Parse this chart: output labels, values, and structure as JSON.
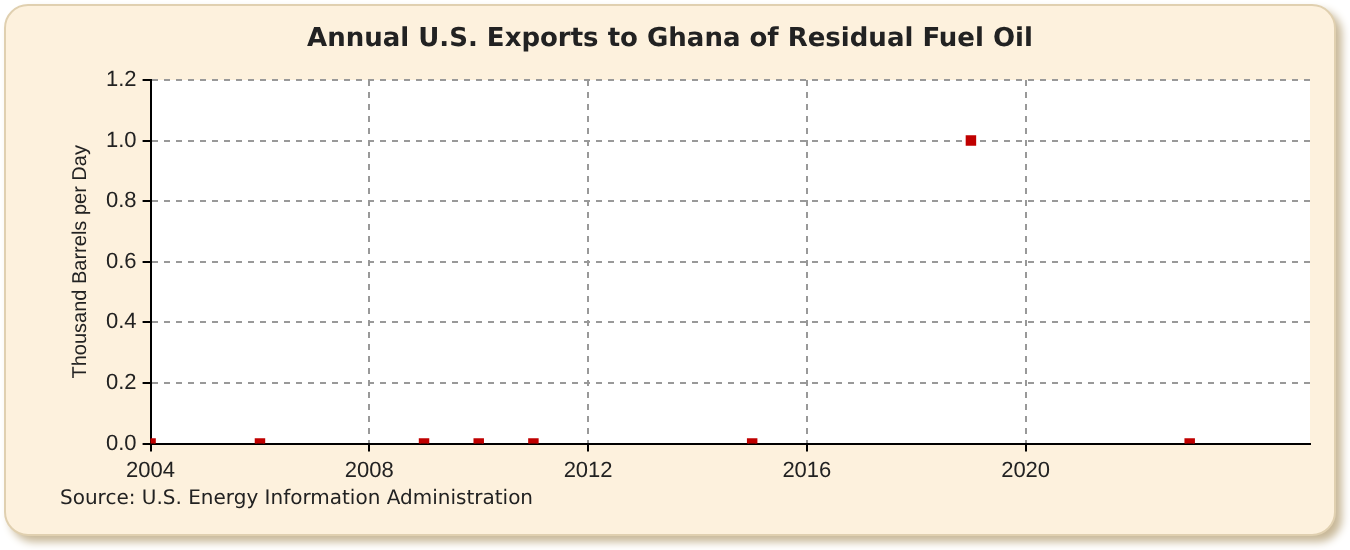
{
  "chart_data": {
    "type": "scatter",
    "title": "Annual U.S. Exports to Ghana of Residual Fuel Oil",
    "ylabel": "Thousand Barrels per Day",
    "annotations": [
      "Source: U.S. Energy Information Administration"
    ],
    "x": [
      2004,
      2006,
      2009,
      2010,
      2011,
      2015,
      2019,
      2023
    ],
    "series": [
      {
        "color": "#c00000",
        "values": [
          0,
          0,
          0,
          0,
          0,
          0,
          1.0,
          0
        ]
      }
    ],
    "xlim": [
      2004,
      2025.2
    ],
    "xticks": [
      2004,
      2008,
      2012,
      2016,
      2020
    ],
    "ylim": [
      0,
      1.2
    ],
    "yticks": [
      {
        "value": 0,
        "label": "0.0"
      },
      {
        "value": 0.2,
        "label": "0.2"
      },
      {
        "value": 0.4,
        "label": "0.4"
      },
      {
        "value": 0.6,
        "label": "0.6"
      },
      {
        "value": 0.8,
        "label": "0.8"
      },
      {
        "value": 1.0,
        "label": "1.0"
      },
      {
        "value": 1.2,
        "label": "1.2"
      }
    ],
    "grid": true,
    "marker": "square",
    "legend": false
  }
}
